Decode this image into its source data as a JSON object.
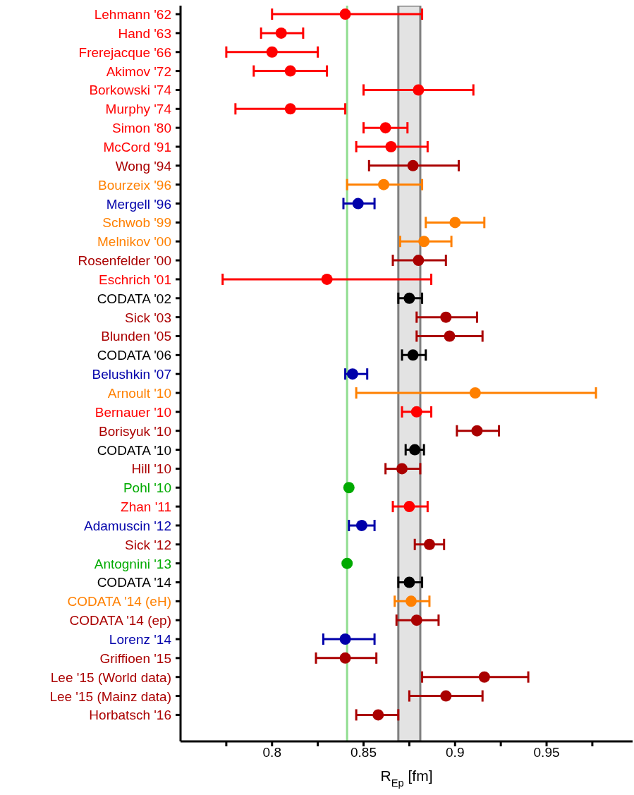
{
  "chart_data": {
    "type": "scatter",
    "orientation": "horizontal",
    "xlabel": "R$_{Ep}$ [fm]",
    "marker": "circle",
    "categories": [
      "Lehmann '62",
      "Hand '63",
      "Frerejacque '66",
      "Akimov '72",
      "Borkowski '74",
      "Murphy '74",
      "Simon '80",
      "McCord '91",
      "Wong '94",
      "Bourzeix '96",
      "Mergell '96",
      "Schwob '99",
      "Melnikov '00",
      "Rosenfelder '00",
      "Eschrich '01",
      "CODATA '02",
      "Sick '03",
      "Blunden '05",
      "CODATA '06",
      "Belushkin '07",
      "Arnoult '10",
      "Bernauer '10",
      "Borisyuk '10",
      "CODATA '10",
      "Hill '10",
      "Pohl '10",
      "Zhan '11",
      "Adamuscin '12",
      "Sick '12",
      "Antognini '13",
      "CODATA '14",
      "CODATA '14 (eH)",
      "CODATA '14 (ep)",
      "Lorenz '14",
      "Griffioen '15",
      "Lee '15 (World data)",
      "Lee '15 (Mainz data)",
      "Horbatsch '16"
    ],
    "values": [
      0.84,
      0.805,
      0.8,
      0.81,
      0.88,
      0.81,
      0.862,
      0.865,
      0.877,
      0.861,
      0.847,
      0.9,
      0.883,
      0.88,
      0.83,
      0.875,
      0.895,
      0.897,
      0.877,
      0.844,
      0.911,
      0.879,
      0.912,
      0.878,
      0.871,
      0.842,
      0.875,
      0.849,
      0.886,
      0.841,
      0.875,
      0.876,
      0.879,
      0.84,
      0.84,
      0.916,
      0.895,
      0.858
    ],
    "errors": [
      [
        0.8,
        0.882
      ],
      [
        0.794,
        0.817
      ],
      [
        0.775,
        0.825
      ],
      [
        0.79,
        0.83
      ],
      [
        0.85,
        0.91
      ],
      [
        0.78,
        0.84
      ],
      [
        0.85,
        0.874
      ],
      [
        0.846,
        0.885
      ],
      [
        0.853,
        0.902
      ],
      [
        0.841,
        0.882
      ],
      [
        0.839,
        0.856
      ],
      [
        0.884,
        0.916
      ],
      [
        0.87,
        0.898
      ],
      [
        0.866,
        0.895
      ],
      [
        0.773,
        0.887
      ],
      [
        0.869,
        0.882
      ],
      [
        0.879,
        0.912
      ],
      [
        0.879,
        0.915
      ],
      [
        0.871,
        0.884
      ],
      [
        0.84,
        0.852
      ],
      [
        0.846,
        0.977
      ],
      [
        0.871,
        0.887
      ],
      [
        0.901,
        0.924
      ],
      [
        0.873,
        0.883
      ],
      [
        0.862,
        0.881
      ],
      null,
      [
        0.866,
        0.885
      ],
      [
        0.842,
        0.856
      ],
      [
        0.878,
        0.894
      ],
      null,
      [
        0.869,
        0.882
      ],
      [
        0.867,
        0.886
      ],
      [
        0.868,
        0.891
      ],
      [
        0.828,
        0.856
      ],
      [
        0.824,
        0.857
      ],
      [
        0.882,
        0.94
      ],
      [
        0.875,
        0.915
      ],
      [
        0.846,
        0.869
      ]
    ],
    "colors": [
      "#ff0000",
      "#ff0000",
      "#ff0000",
      "#ff0000",
      "#ff0000",
      "#ff0000",
      "#ff0000",
      "#ff0000",
      "#aa0000",
      "#ff8000",
      "#0000aa",
      "#ff8000",
      "#ff8000",
      "#aa0000",
      "#ff0000",
      "#000000",
      "#aa0000",
      "#aa0000",
      "#000000",
      "#0000aa",
      "#ff8000",
      "#ff0000",
      "#aa0000",
      "#000000",
      "#aa0000",
      "#00aa00",
      "#ff0000",
      "#0000aa",
      "#aa0000",
      "#00aa00",
      "#000000",
      "#ff8000",
      "#aa0000",
      "#0000aa",
      "#aa0000",
      "#aa0000",
      "#aa0000",
      "#aa0000"
    ],
    "xlim": [
      0.75,
      0.997
    ],
    "xticks": [
      {
        "value": 0.775,
        "label": null
      },
      0.8,
      {
        "value": 0.825,
        "label": null
      },
      0.85,
      {
        "value": 0.875,
        "label": null
      },
      0.9,
      {
        "value": 0.925,
        "label": null
      },
      0.95,
      {
        "value": 0.975,
        "label": null
      }
    ],
    "ref_lines": [
      {
        "axis": "x",
        "value": 0.841,
        "color": "#90dd90"
      }
    ],
    "bands": [
      {
        "axis": "x",
        "from": 0.869,
        "to": 0.881,
        "color": "#e3e3e3"
      }
    ]
  }
}
